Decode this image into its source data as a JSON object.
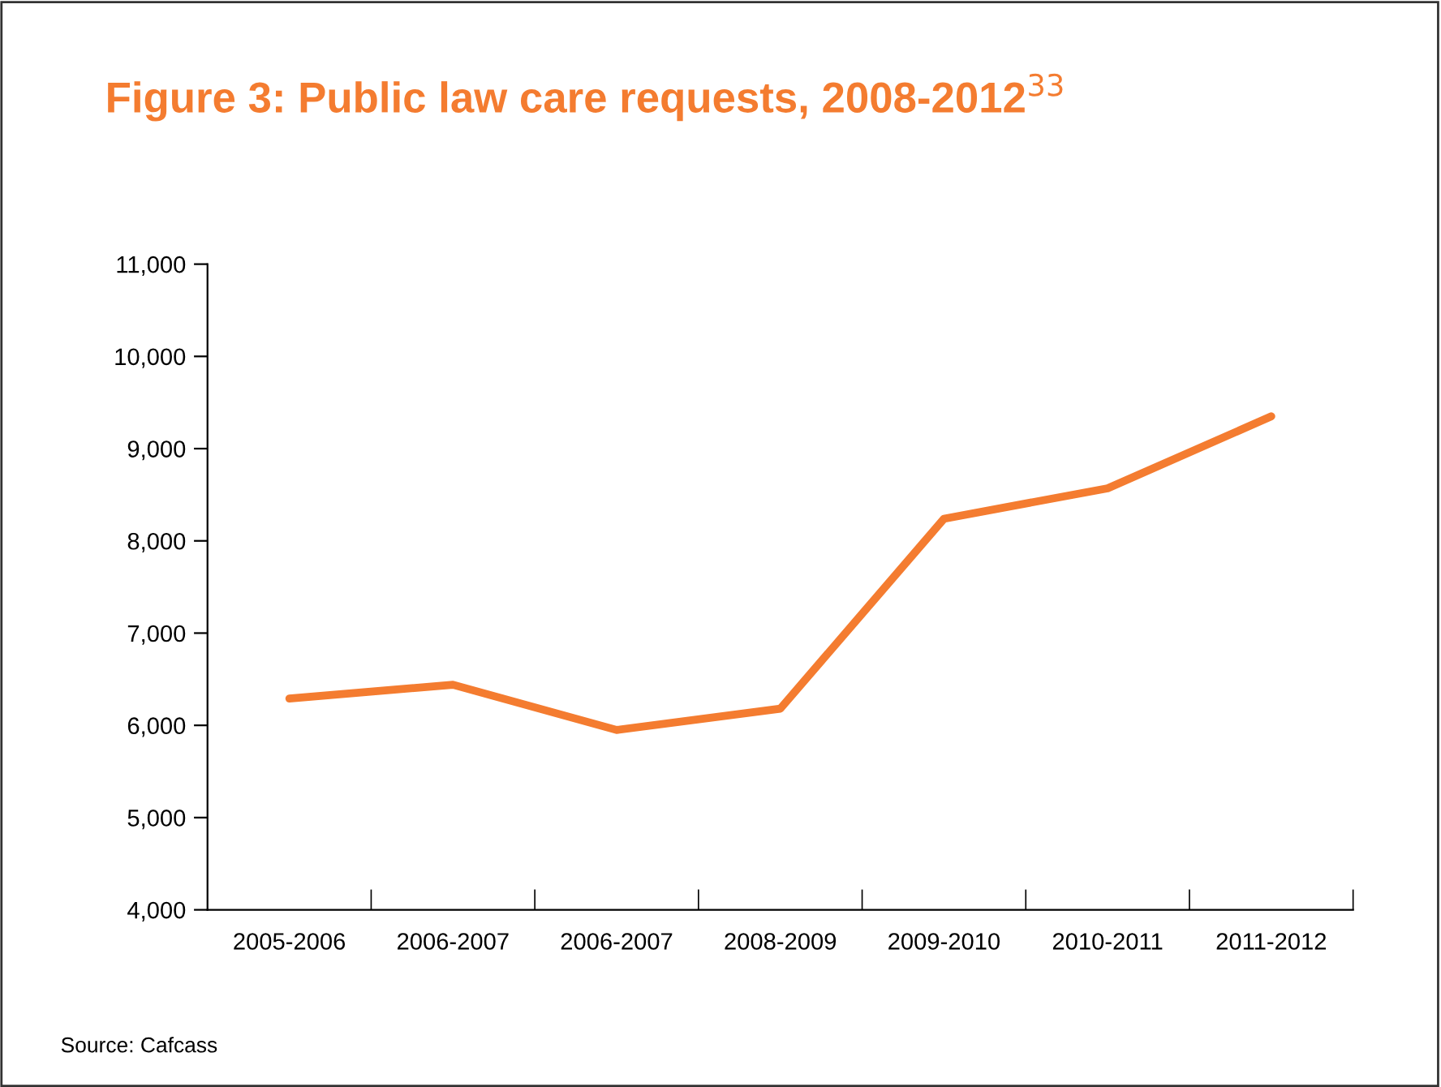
{
  "chart_data": {
    "type": "line",
    "title": "Figure 3: Public law care requests, 2008-2012$^{33}$",
    "categories": [
      "2005-2006",
      "2006-2007",
      "2006-2007",
      "2008-2009",
      "2009-2010",
      "2010-2011",
      "2011-2012"
    ],
    "series": [
      {
        "color": "#f47c30",
        "values": [
          6290,
          6440,
          5950,
          6180,
          8240,
          8570,
          9350
        ]
      }
    ],
    "ylim": [
      4000,
      11000
    ],
    "yticks": [
      {
        "value": 4000,
        "label": "4,000"
      },
      {
        "value": 5000,
        "label": "5,000"
      },
      {
        "value": 6000,
        "label": "6,000"
      },
      {
        "value": 7000,
        "label": "7,000"
      },
      {
        "value": 8000,
        "label": "8,000"
      },
      {
        "value": 9000,
        "label": "9,000"
      },
      {
        "value": 10000,
        "label": "10,000"
      },
      {
        "value": 11000,
        "label": "11,000"
      }
    ],
    "grid": false,
    "legend": false,
    "marker": "none",
    "line_style": "solid",
    "annotations": [
      "Source: Cafcass"
    ]
  }
}
